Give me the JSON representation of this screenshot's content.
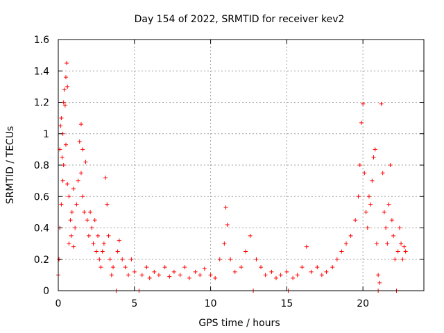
{
  "chart_data": {
    "type": "scatter",
    "title": "Day 154 of 2022, SRMTID for receiver kev2",
    "xlabel": "GPS time / hours",
    "ylabel": "SRMTID / TECUs",
    "xlim": [
      0,
      24
    ],
    "ylim": [
      0,
      1.6
    ],
    "xticks": [
      0,
      5,
      10,
      15,
      20
    ],
    "yticks": [
      0,
      0.2,
      0.4,
      0.6,
      0.8,
      1,
      1.2,
      1.4,
      1.6
    ],
    "xtick_labels": [
      "0",
      "5",
      "10",
      "15",
      "20"
    ],
    "ytick_labels": [
      "0",
      "0.2",
      "0.4",
      "0.6",
      "0.8",
      "1",
      "1.2",
      "1.4",
      "1.6"
    ],
    "grid": true,
    "marker": "+",
    "marker_color": "#ff0000",
    "series": [
      {
        "name": "SRMTID",
        "points": [
          [
            0.0,
            0.1
          ],
          [
            0.05,
            0.2
          ],
          [
            0.1,
            0.4
          ],
          [
            0.1,
            0.9
          ],
          [
            0.15,
            1.05
          ],
          [
            0.2,
            1.1
          ],
          [
            0.2,
            0.55
          ],
          [
            0.25,
            0.85
          ],
          [
            0.3,
            1.0
          ],
          [
            0.3,
            0.7
          ],
          [
            0.35,
            1.2
          ],
          [
            0.35,
            0.8
          ],
          [
            0.4,
            1.28
          ],
          [
            0.45,
            1.18
          ],
          [
            0.5,
            1.36
          ],
          [
            0.5,
            0.93
          ],
          [
            0.55,
            1.45
          ],
          [
            0.6,
            1.3
          ],
          [
            0.6,
            0.68
          ],
          [
            0.7,
            0.6
          ],
          [
            0.7,
            0.3
          ],
          [
            0.8,
            0.45
          ],
          [
            0.85,
            0.35
          ],
          [
            0.9,
            0.5
          ],
          [
            1.0,
            0.28
          ],
          [
            1.0,
            0.65
          ],
          [
            1.1,
            0.4
          ],
          [
            1.2,
            0.55
          ],
          [
            1.3,
            0.7
          ],
          [
            1.4,
            0.95
          ],
          [
            1.5,
            1.06
          ],
          [
            1.5,
            0.75
          ],
          [
            1.6,
            0.9
          ],
          [
            1.6,
            0.6
          ],
          [
            1.7,
            0.5
          ],
          [
            1.8,
            0.82
          ],
          [
            1.9,
            0.45
          ],
          [
            2.0,
            0.35
          ],
          [
            2.1,
            0.5
          ],
          [
            2.2,
            0.4
          ],
          [
            2.3,
            0.3
          ],
          [
            2.4,
            0.45
          ],
          [
            2.5,
            0.25
          ],
          [
            2.6,
            0.35
          ],
          [
            2.7,
            0.2
          ],
          [
            2.8,
            0.15
          ],
          [
            2.9,
            0.25
          ],
          [
            3.0,
            0.3
          ],
          [
            3.1,
            0.72
          ],
          [
            3.2,
            0.55
          ],
          [
            3.3,
            0.35
          ],
          [
            3.4,
            0.2
          ],
          [
            3.5,
            0.1
          ],
          [
            3.6,
            0.15
          ],
          [
            3.8,
            0.0
          ],
          [
            3.9,
            0.25
          ],
          [
            4.0,
            0.32
          ],
          [
            4.2,
            0.2
          ],
          [
            4.4,
            0.15
          ],
          [
            4.6,
            0.1
          ],
          [
            4.8,
            0.2
          ],
          [
            5.0,
            0.12
          ],
          [
            5.3,
            0.0
          ],
          [
            5.5,
            0.1
          ],
          [
            5.8,
            0.15
          ],
          [
            6.0,
            0.08
          ],
          [
            6.3,
            0.12
          ],
          [
            6.6,
            0.1
          ],
          [
            7.0,
            0.15
          ],
          [
            7.3,
            0.09
          ],
          [
            7.6,
            0.12
          ],
          [
            8.0,
            0.1
          ],
          [
            8.3,
            0.15
          ],
          [
            8.6,
            0.08
          ],
          [
            9.0,
            0.12
          ],
          [
            9.3,
            0.1
          ],
          [
            9.6,
            0.14
          ],
          [
            10.0,
            0.1
          ],
          [
            10.3,
            0.08
          ],
          [
            10.6,
            0.2
          ],
          [
            10.9,
            0.3
          ],
          [
            11.0,
            0.53
          ],
          [
            11.1,
            0.42
          ],
          [
            11.3,
            0.2
          ],
          [
            11.6,
            0.12
          ],
          [
            12.0,
            0.15
          ],
          [
            12.3,
            0.25
          ],
          [
            12.6,
            0.35
          ],
          [
            12.8,
            0.0
          ],
          [
            13.0,
            0.2
          ],
          [
            13.3,
            0.15
          ],
          [
            13.6,
            0.1
          ],
          [
            14.0,
            0.12
          ],
          [
            14.3,
            0.08
          ],
          [
            14.6,
            0.1
          ],
          [
            15.0,
            0.12
          ],
          [
            15.1,
            0.0
          ],
          [
            15.4,
            0.08
          ],
          [
            15.7,
            0.1
          ],
          [
            16.0,
            0.15
          ],
          [
            16.3,
            0.28
          ],
          [
            16.6,
            0.12
          ],
          [
            17.0,
            0.15
          ],
          [
            17.3,
            0.1
          ],
          [
            17.6,
            0.12
          ],
          [
            18.0,
            0.15
          ],
          [
            18.3,
            0.2
          ],
          [
            18.6,
            0.25
          ],
          [
            18.9,
            0.3
          ],
          [
            19.2,
            0.35
          ],
          [
            19.5,
            0.45
          ],
          [
            19.7,
            0.6
          ],
          [
            19.8,
            0.8
          ],
          [
            19.9,
            1.07
          ],
          [
            20.0,
            1.19
          ],
          [
            20.1,
            0.75
          ],
          [
            20.2,
            0.5
          ],
          [
            20.3,
            0.4
          ],
          [
            20.4,
            0.6
          ],
          [
            20.5,
            0.55
          ],
          [
            20.6,
            0.7
          ],
          [
            20.7,
            0.85
          ],
          [
            20.8,
            0.9
          ],
          [
            20.9,
            0.3
          ],
          [
            21.0,
            0.1
          ],
          [
            21.0,
            0.0
          ],
          [
            21.1,
            0.05
          ],
          [
            21.2,
            1.19
          ],
          [
            21.3,
            0.75
          ],
          [
            21.4,
            0.5
          ],
          [
            21.5,
            0.4
          ],
          [
            21.6,
            0.3
          ],
          [
            21.7,
            0.55
          ],
          [
            21.8,
            0.8
          ],
          [
            21.9,
            0.45
          ],
          [
            22.0,
            0.35
          ],
          [
            22.1,
            0.2
          ],
          [
            22.2,
            0.0
          ],
          [
            22.3,
            0.25
          ],
          [
            22.4,
            0.4
          ],
          [
            22.5,
            0.3
          ],
          [
            22.6,
            0.2
          ],
          [
            22.7,
            0.28
          ],
          [
            22.8,
            0.25
          ]
        ]
      }
    ]
  }
}
